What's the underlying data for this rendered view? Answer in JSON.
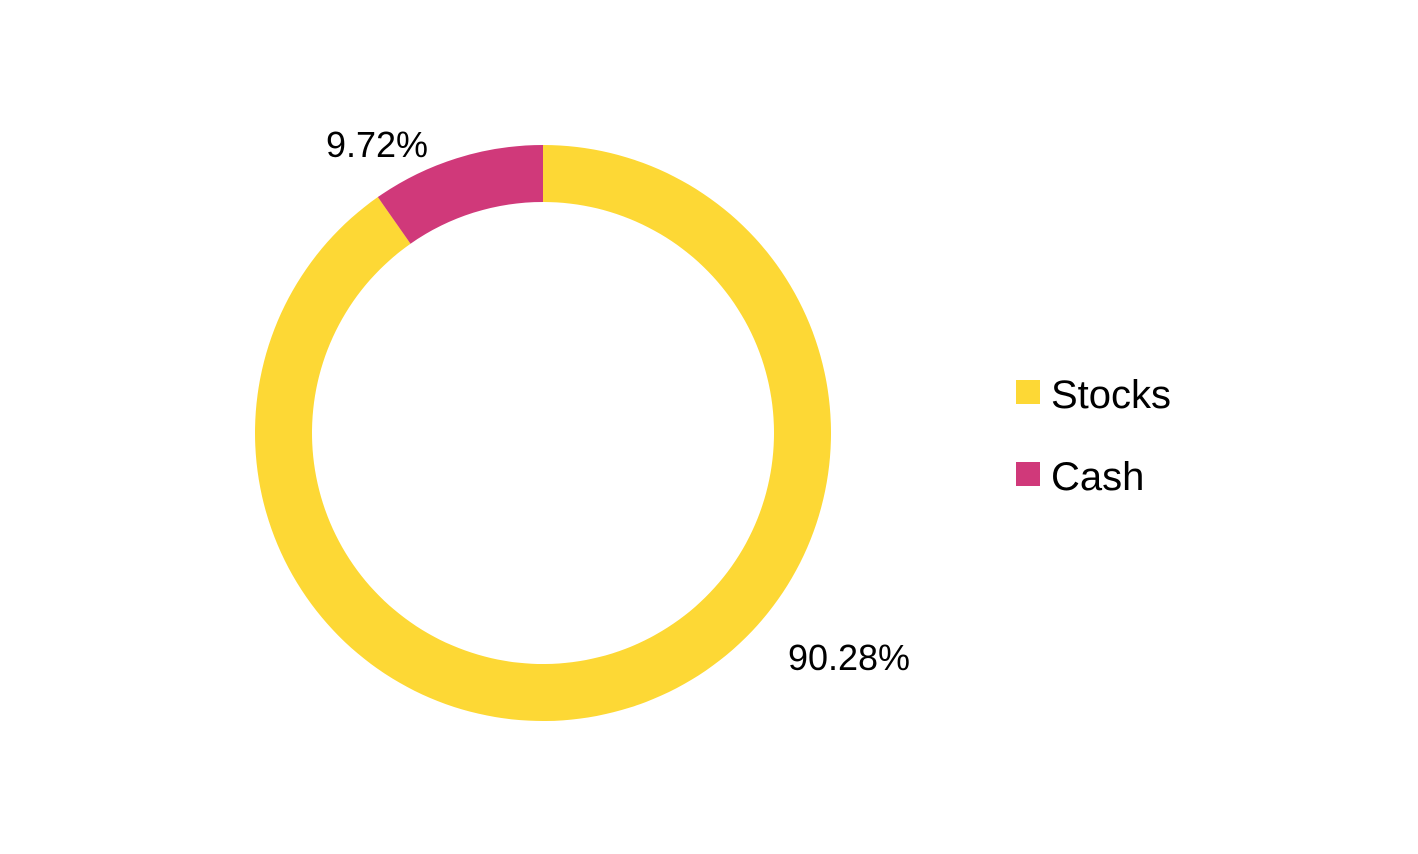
{
  "chart_data": {
    "type": "pie",
    "variant": "donut",
    "title": "",
    "slices": [
      {
        "name": "Stocks",
        "value": 90.28,
        "label": "90.28%",
        "color": "#FDD835"
      },
      {
        "name": "Cash",
        "value": 9.72,
        "label": "9.72%",
        "color": "#D0397A"
      }
    ],
    "legend": {
      "position": "right",
      "items": [
        "Stocks",
        "Cash"
      ]
    }
  }
}
